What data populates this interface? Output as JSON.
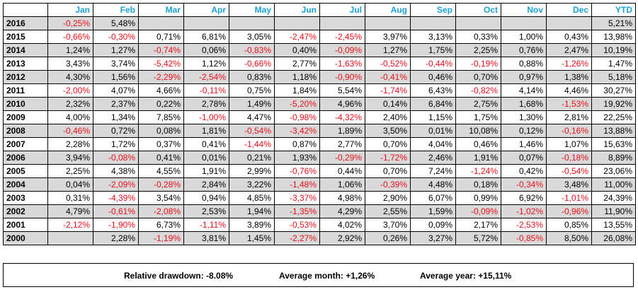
{
  "columns": [
    "Jan",
    "Feb",
    "Mar",
    "Apr",
    "May",
    "Jun",
    "Jul",
    "Aug",
    "Sep",
    "Oct",
    "Nov",
    "Dec",
    "YTD"
  ],
  "rows": [
    {
      "year": "2016",
      "values": [
        "-0,25%",
        "5,48%",
        "",
        "",
        "",
        "",
        "",
        "",
        "",
        "",
        "",
        "",
        "5,21%"
      ]
    },
    {
      "year": "2015",
      "values": [
        "-0,66%",
        "-0,30%",
        "0,71%",
        "6,81%",
        "3,05%",
        "-2,47%",
        "-2,45%",
        "3,97%",
        "3,13%",
        "0,33%",
        "1,00%",
        "0,43%",
        "13,98%"
      ]
    },
    {
      "year": "2014",
      "values": [
        "1,24%",
        "1,27%",
        "-0,74%",
        "0,06%",
        "-0,83%",
        "0,40%",
        "-0,09%",
        "1,27%",
        "1,75%",
        "2,25%",
        "0,76%",
        "2,47%",
        "10,19%"
      ]
    },
    {
      "year": "2013",
      "values": [
        "3,43%",
        "3,74%",
        "-5,42%",
        "1,12%",
        "-0,66%",
        "2,77%",
        "-1,63%",
        "-0,52%",
        "-0,44%",
        "-0,19%",
        "0,88%",
        "-1,26%",
        "1,47%"
      ]
    },
    {
      "year": "2012",
      "values": [
        "4,30%",
        "1,56%",
        "-2,29%",
        "-2,54%",
        "0,83%",
        "1,18%",
        "-0,90%",
        "-0,41%",
        "0,46%",
        "0,70%",
        "0,97%",
        "1,38%",
        "5,18%"
      ]
    },
    {
      "year": "2011",
      "values": [
        "-2,00%",
        "4,07%",
        "4,66%",
        "-0,11%",
        "0,75%",
        "1,84%",
        "5,54%",
        "-1,74%",
        "6,43%",
        "-0,82%",
        "4,14%",
        "4,46%",
        "30,27%"
      ]
    },
    {
      "year": "2010",
      "values": [
        "2,32%",
        "2,37%",
        "0,22%",
        "2,78%",
        "1,49%",
        "-5,20%",
        "4,96%",
        "0,14%",
        "6,84%",
        "2,75%",
        "1,68%",
        "-1,53%",
        "19,92%"
      ]
    },
    {
      "year": "2009",
      "values": [
        "4,00%",
        "1,34%",
        "7,85%",
        "-1,00%",
        "4,47%",
        "-0,98%",
        "-4,32%",
        "2,40%",
        "1,15%",
        "1,75%",
        "1,30%",
        "2,81%",
        "22,25%"
      ]
    },
    {
      "year": "2008",
      "values": [
        "-0,46%",
        "0,72%",
        "0,08%",
        "1,81%",
        "-0,54%",
        "-3,42%",
        "1,89%",
        "3,50%",
        "0,01%",
        "10,08%",
        "0,12%",
        "-0,16%",
        "13,88%"
      ]
    },
    {
      "year": "2007",
      "values": [
        "2,28%",
        "1,72%",
        "0,37%",
        "0,41%",
        "-1,44%",
        "0,87%",
        "2,77%",
        "0,70%",
        "4,04%",
        "0,46%",
        "1,46%",
        "1,07%",
        "15,63%"
      ]
    },
    {
      "year": "2006",
      "values": [
        "3,94%",
        "-0,08%",
        "0,41%",
        "0,01%",
        "0,21%",
        "1,93%",
        "-0,29%",
        "-1,72%",
        "2,46%",
        "1,91%",
        "0,07%",
        "-0,18%",
        "8,89%"
      ]
    },
    {
      "year": "2005",
      "values": [
        "2,25%",
        "4,38%",
        "4,55%",
        "1,91%",
        "2,99%",
        "-0,76%",
        "0,44%",
        "0,70%",
        "7,24%",
        "-1,24%",
        "0,42%",
        "-0,54%",
        "23,06%"
      ]
    },
    {
      "year": "2004",
      "values": [
        "0,04%",
        "-2,09%",
        "-0,28%",
        "2,84%",
        "3,22%",
        "-1,48%",
        "1,06%",
        "-0,39%",
        "4,48%",
        "0,18%",
        "-0,34%",
        "3,48%",
        "11,00%"
      ]
    },
    {
      "year": "2003",
      "values": [
        "0,31%",
        "-4,39%",
        "3,54%",
        "0,94%",
        "4,85%",
        "-3,37%",
        "4,98%",
        "2,90%",
        "6,07%",
        "0,99%",
        "6,92%",
        "-1,01%",
        "24,39%"
      ]
    },
    {
      "year": "2002",
      "values": [
        "4,79%",
        "-0,61%",
        "-2,08%",
        "2,53%",
        "1,94%",
        "-1,35%",
        "4,29%",
        "2,55%",
        "1,59%",
        "-0,09%",
        "-1,02%",
        "-0,96%",
        "11,90%"
      ]
    },
    {
      "year": "2001",
      "values": [
        "-2,12%",
        "-1,90%",
        "6,73%",
        "-1,11%",
        "3,89%",
        "-0,53%",
        "4,02%",
        "3,70%",
        "0,09%",
        "2,17%",
        "-2,53%",
        "0,85%",
        "13,55%"
      ]
    },
    {
      "year": "2000",
      "values": [
        "",
        "2,28%",
        "-1,19%",
        "3,81%",
        "1,45%",
        "-2,27%",
        "2,92%",
        "0,26%",
        "3,27%",
        "5,72%",
        "-0,85%",
        "8,50%",
        "26,08%"
      ]
    }
  ],
  "footer": {
    "drawdown": "Relative drawdown: -8.08%",
    "avg_month": "Average month: +1,26%",
    "avg_year": "Average year: +15,11%"
  },
  "colors": {
    "header_text": "#1ba1d6",
    "negative": "#e8101a",
    "shade": "#d9d9d9"
  }
}
